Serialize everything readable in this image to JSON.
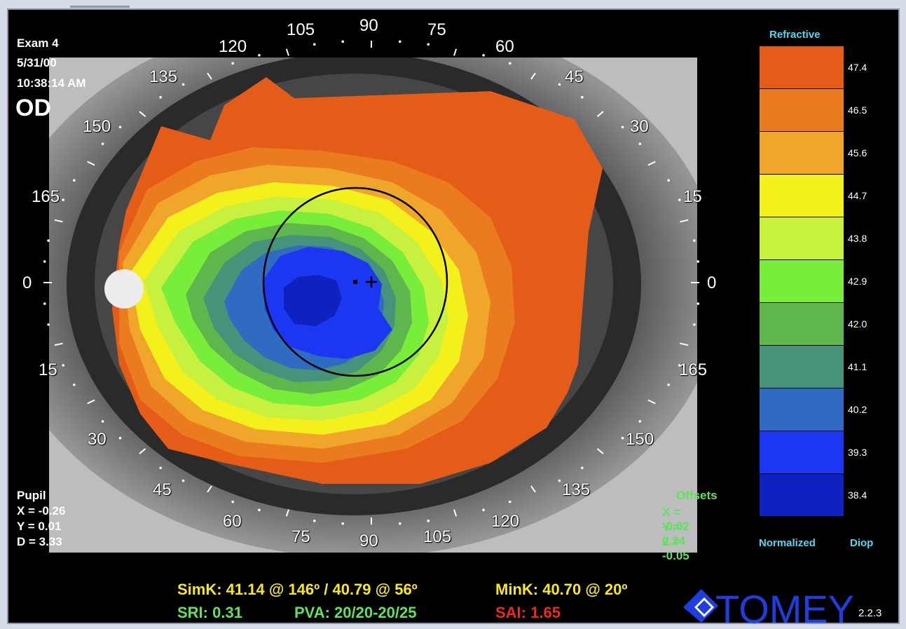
{
  "exam": {
    "label": "Exam 4",
    "date": "5/31/00",
    "time": "10:38:14 AM",
    "eye": "OD"
  },
  "pupil": {
    "title": "Pupil",
    "x": "X = -0.26",
    "y": "Y =  0.01",
    "d": "D =  3.33"
  },
  "offsets": {
    "title": "Offsets",
    "x": "X = -0.02",
    "y": "Y =  0.24",
    "z": "Z = -0.05"
  },
  "degree_labels": [
    "105",
    "90",
    "75",
    "120",
    "60",
    "135",
    "45",
    "150",
    "30",
    "165",
    "15",
    "0",
    "0",
    "15",
    "165",
    "30",
    "150",
    "45",
    "135",
    "60",
    "120",
    "75",
    "90",
    "105"
  ],
  "legend": {
    "title": "Refractive",
    "footer_left": "Normalized",
    "footer_right": "Diop",
    "values": [
      "47.4",
      "46.5",
      "45.6",
      "44.7",
      "43.8",
      "42.9",
      "42.0",
      "41.1",
      "40.2",
      "39.3",
      "38.4"
    ],
    "colors": [
      "#e45c17",
      "#ea7b1e",
      "#f0a62a",
      "#f4f01c",
      "#c8f03e",
      "#78ee3a",
      "#5fb64d",
      "#44937a",
      "#2f6bc1",
      "#1b37f2",
      "#0f22bf"
    ]
  },
  "stats": {
    "simk": "SimK: 41.14 @ 146º / 40.79 @ 56º",
    "mink": "MinK: 40.70 @ 20º",
    "sri": "SRI: 0.31",
    "pva": "PVA: 20/20-20/25",
    "sai": "SAI: 1.65"
  },
  "brand": {
    "logo_text": "TOMEY",
    "version": "2.2.3"
  },
  "colors": {
    "yellow": "#f7e81c",
    "green": "#5fe35f",
    "red": "#ee2a1a",
    "cyan": "#58d6f0",
    "logo_blue": "#1f3ee0"
  }
}
